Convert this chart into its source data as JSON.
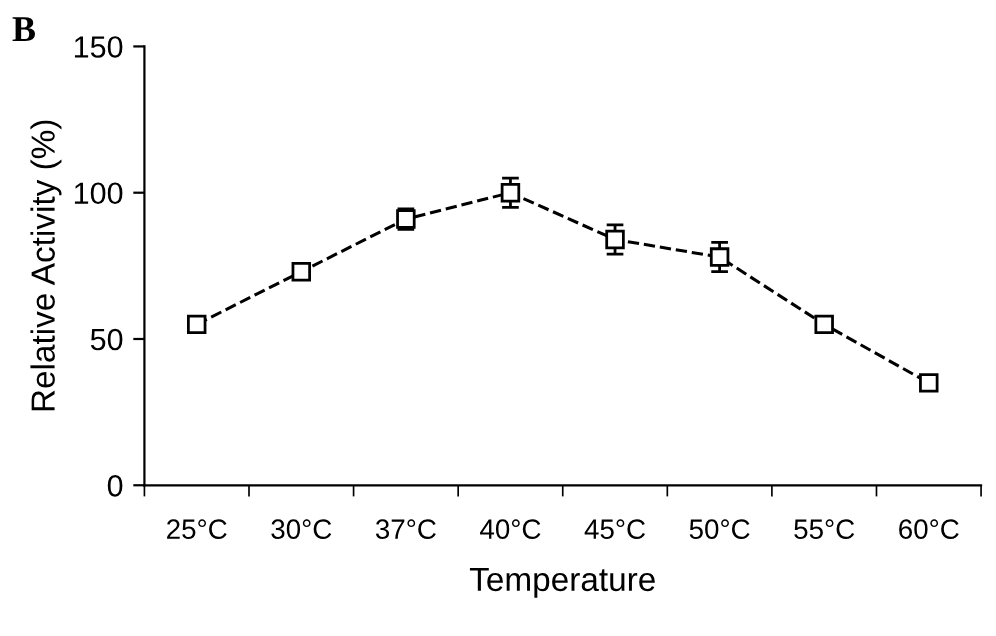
{
  "chart_data": {
    "type": "line",
    "title": "B",
    "xlabel": "Temperature",
    "ylabel": "Relative Activity (%)",
    "categories": [
      "25°C",
      "30°C",
      "37°C",
      "40°C",
      "45°C",
      "50°C",
      "55°C",
      "60°C"
    ],
    "series": [
      {
        "color": "#000000",
        "values": [
          55,
          73,
          91,
          100,
          84,
          78,
          55,
          35
        ],
        "errors": [
          2,
          2,
          3.5,
          5,
          5,
          5,
          1.5,
          2.5
        ]
      }
    ],
    "ylim": [
      0,
      150
    ],
    "yticks": [
      0,
      50,
      100,
      150
    ],
    "grid": false,
    "marker": "square",
    "line_style": "dashed"
  }
}
